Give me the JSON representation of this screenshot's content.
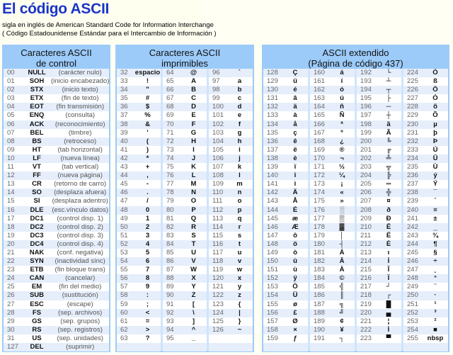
{
  "header": {
    "title": "El código ASCII",
    "subtitle1": "sigla en inglés de American Standard Code for Information Interchange",
    "subtitle2": "( Código Estadounidense Estándar para el Intercambio de Información )"
  },
  "control": {
    "title1": "Caracteres ASCII",
    "title2": "de control",
    "rows": [
      [
        "00",
        "NULL",
        "(carácter nulo)"
      ],
      [
        "01",
        "SOH",
        "(inicio encabezado)"
      ],
      [
        "02",
        "STX",
        "(inicio texto)"
      ],
      [
        "03",
        "ETX",
        "(fin de texto)"
      ],
      [
        "04",
        "EOT",
        "(fin transmisión)"
      ],
      [
        "05",
        "ENQ",
        "(consulta)"
      ],
      [
        "06",
        "ACK",
        "(reconocimiento)"
      ],
      [
        "07",
        "BEL",
        "(timbre)"
      ],
      [
        "08",
        "BS",
        "(retroceso)"
      ],
      [
        "09",
        "HT",
        "(tab horizontal)"
      ],
      [
        "10",
        "LF",
        "(nueva línea)"
      ],
      [
        "11",
        "VT",
        "(tab vertical)"
      ],
      [
        "12",
        "FF",
        "(nueva página)"
      ],
      [
        "13",
        "CR",
        "(retorno de carro)"
      ],
      [
        "14",
        "SO",
        "(desplaza afuera)"
      ],
      [
        "15",
        "SI",
        "(desplaza adentro)"
      ],
      [
        "16",
        "DLE",
        "(esc.vínculo datos)"
      ],
      [
        "17",
        "DC1",
        "(control disp. 1)"
      ],
      [
        "18",
        "DC2",
        "(control disp. 2)"
      ],
      [
        "19",
        "DC3",
        "(control disp. 3)"
      ],
      [
        "20",
        "DC4",
        "(control disp. 4)"
      ],
      [
        "21",
        "NAK",
        "(conf. negativa)"
      ],
      [
        "22",
        "SYN",
        "(inactividad sínc)"
      ],
      [
        "23",
        "ETB",
        "(fin bloque trans)"
      ],
      [
        "24",
        "CAN",
        "(cancelar)"
      ],
      [
        "25",
        "EM",
        "(fin del medio)"
      ],
      [
        "26",
        "SUB",
        "(sustitución)"
      ],
      [
        "27",
        "ESC",
        "(escape)"
      ],
      [
        "28",
        "FS",
        "(sep. archivos)"
      ],
      [
        "29",
        "GS",
        "(sep. grupos)"
      ],
      [
        "30",
        "RS",
        "(sep. registros)"
      ],
      [
        "31",
        "US",
        "(sep. unidades)"
      ],
      [
        "127",
        "DEL",
        "(suprimir)"
      ]
    ]
  },
  "printable": {
    "title1": "Caracteres ASCII",
    "title2": "imprimibles",
    "columns": [
      [
        [
          "32",
          "espacio"
        ],
        [
          "33",
          "!"
        ],
        [
          "34",
          "\""
        ],
        [
          "35",
          "#"
        ],
        [
          "36",
          "$"
        ],
        [
          "37",
          "%"
        ],
        [
          "38",
          "&"
        ],
        [
          "39",
          "'"
        ],
        [
          "40",
          "("
        ],
        [
          "41",
          ")"
        ],
        [
          "42",
          "*"
        ],
        [
          "43",
          "+"
        ],
        [
          "44",
          ","
        ],
        [
          "45",
          "-"
        ],
        [
          "46",
          "."
        ],
        [
          "47",
          "/"
        ],
        [
          "48",
          "0"
        ],
        [
          "49",
          "1"
        ],
        [
          "50",
          "2"
        ],
        [
          "51",
          "3"
        ],
        [
          "52",
          "4"
        ],
        [
          "53",
          "5"
        ],
        [
          "54",
          "6"
        ],
        [
          "55",
          "7"
        ],
        [
          "56",
          "8"
        ],
        [
          "57",
          "9"
        ],
        [
          "58",
          ":"
        ],
        [
          "59",
          ";"
        ],
        [
          "60",
          "<"
        ],
        [
          "61",
          "="
        ],
        [
          "62",
          ">"
        ],
        [
          "63",
          "?"
        ]
      ],
      [
        [
          "64",
          "@"
        ],
        [
          "65",
          "A"
        ],
        [
          "66",
          "B"
        ],
        [
          "67",
          "C"
        ],
        [
          "68",
          "D"
        ],
        [
          "69",
          "E"
        ],
        [
          "70",
          "F"
        ],
        [
          "71",
          "G"
        ],
        [
          "72",
          "H"
        ],
        [
          "73",
          "I"
        ],
        [
          "74",
          "J"
        ],
        [
          "75",
          "K"
        ],
        [
          "76",
          "L"
        ],
        [
          "77",
          "M"
        ],
        [
          "78",
          "N"
        ],
        [
          "79",
          "O"
        ],
        [
          "80",
          "P"
        ],
        [
          "81",
          "Q"
        ],
        [
          "82",
          "R"
        ],
        [
          "83",
          "S"
        ],
        [
          "84",
          "T"
        ],
        [
          "85",
          "U"
        ],
        [
          "86",
          "V"
        ],
        [
          "87",
          "W"
        ],
        [
          "88",
          "X"
        ],
        [
          "89",
          "Y"
        ],
        [
          "90",
          "Z"
        ],
        [
          "91",
          "["
        ],
        [
          "92",
          "\\"
        ],
        [
          "93",
          "]"
        ],
        [
          "94",
          "^"
        ],
        [
          "95",
          "_"
        ]
      ],
      [
        [
          "96",
          "`"
        ],
        [
          "97",
          "a"
        ],
        [
          "98",
          "b"
        ],
        [
          "99",
          "c"
        ],
        [
          "100",
          "d"
        ],
        [
          "101",
          "e"
        ],
        [
          "102",
          "f"
        ],
        [
          "103",
          "g"
        ],
        [
          "104",
          "h"
        ],
        [
          "105",
          "i"
        ],
        [
          "106",
          "j"
        ],
        [
          "107",
          "k"
        ],
        [
          "108",
          "l"
        ],
        [
          "109",
          "m"
        ],
        [
          "110",
          "n"
        ],
        [
          "111",
          "o"
        ],
        [
          "112",
          "p"
        ],
        [
          "113",
          "q"
        ],
        [
          "114",
          "r"
        ],
        [
          "115",
          "s"
        ],
        [
          "116",
          "t"
        ],
        [
          "117",
          "u"
        ],
        [
          "118",
          "v"
        ],
        [
          "119",
          "w"
        ],
        [
          "120",
          "x"
        ],
        [
          "121",
          "y"
        ],
        [
          "122",
          "z"
        ],
        [
          "123",
          "{"
        ],
        [
          "124",
          "|"
        ],
        [
          "125",
          "}"
        ],
        [
          "126",
          "~"
        ]
      ]
    ]
  },
  "extended": {
    "title1": "ASCII extendido",
    "title2": "(Página de código 437)",
    "columns": [
      [
        [
          "128",
          "Ç"
        ],
        [
          "129",
          "ü"
        ],
        [
          "130",
          "é"
        ],
        [
          "131",
          "â"
        ],
        [
          "132",
          "ä"
        ],
        [
          "133",
          "à"
        ],
        [
          "134",
          "å"
        ],
        [
          "135",
          "ç"
        ],
        [
          "136",
          "ê"
        ],
        [
          "137",
          "ë"
        ],
        [
          "138",
          "è"
        ],
        [
          "139",
          "ï"
        ],
        [
          "140",
          "î"
        ],
        [
          "141",
          "ì"
        ],
        [
          "142",
          "Ä"
        ],
        [
          "143",
          "Å"
        ],
        [
          "144",
          "É"
        ],
        [
          "145",
          "æ"
        ],
        [
          "146",
          "Æ"
        ],
        [
          "147",
          "ô"
        ],
        [
          "148",
          "ö"
        ],
        [
          "149",
          "ò"
        ],
        [
          "150",
          "û"
        ],
        [
          "151",
          "ù"
        ],
        [
          "152",
          "ÿ"
        ],
        [
          "153",
          "Ö"
        ],
        [
          "154",
          "Ü"
        ],
        [
          "155",
          "ø"
        ],
        [
          "156",
          "£"
        ],
        [
          "157",
          "Ø"
        ],
        [
          "158",
          "×"
        ],
        [
          "159",
          "ƒ"
        ]
      ],
      [
        [
          "160",
          "á"
        ],
        [
          "161",
          "í"
        ],
        [
          "162",
          "ó"
        ],
        [
          "163",
          "ú"
        ],
        [
          "164",
          "ñ"
        ],
        [
          "165",
          "Ñ"
        ],
        [
          "166",
          "ª"
        ],
        [
          "167",
          "º"
        ],
        [
          "168",
          "¿"
        ],
        [
          "169",
          "®"
        ],
        [
          "170",
          "¬"
        ],
        [
          "171",
          "½"
        ],
        [
          "172",
          "¼"
        ],
        [
          "173",
          "¡"
        ],
        [
          "174",
          "«"
        ],
        [
          "175",
          "»"
        ],
        [
          "176",
          "░"
        ],
        [
          "177",
          "▒"
        ],
        [
          "178",
          "▓"
        ],
        [
          "179",
          "│"
        ],
        [
          "180",
          "┤"
        ],
        [
          "181",
          "Á"
        ],
        [
          "182",
          "Â"
        ],
        [
          "183",
          "À"
        ],
        [
          "184",
          "©"
        ],
        [
          "185",
          "╣"
        ],
        [
          "186",
          "║"
        ],
        [
          "187",
          "╗"
        ],
        [
          "188",
          "╝"
        ],
        [
          "189",
          "¢"
        ],
        [
          "190",
          "¥"
        ],
        [
          "191",
          "┐"
        ]
      ],
      [
        [
          "192",
          "└"
        ],
        [
          "193",
          "┴"
        ],
        [
          "194",
          "┬"
        ],
        [
          "195",
          "├"
        ],
        [
          "196",
          "─"
        ],
        [
          "197",
          "┼"
        ],
        [
          "198",
          "ã"
        ],
        [
          "199",
          "Ã"
        ],
        [
          "200",
          "╚"
        ],
        [
          "201",
          "╔"
        ],
        [
          "202",
          "╩"
        ],
        [
          "203",
          "╦"
        ],
        [
          "204",
          "╠"
        ],
        [
          "205",
          "═"
        ],
        [
          "206",
          "╬"
        ],
        [
          "207",
          "¤"
        ],
        [
          "208",
          "ð"
        ],
        [
          "209",
          "Ð"
        ],
        [
          "210",
          "Ê"
        ],
        [
          "211",
          "Ë"
        ],
        [
          "212",
          "È"
        ],
        [
          "213",
          "ı"
        ],
        [
          "214",
          "Í"
        ],
        [
          "215",
          "Î"
        ],
        [
          "216",
          "Ï"
        ],
        [
          "217",
          "┘"
        ],
        [
          "218",
          "┌"
        ],
        [
          "219",
          "█"
        ],
        [
          "220",
          "▄"
        ],
        [
          "221",
          "¦"
        ],
        [
          "222",
          "Ì"
        ],
        [
          "223",
          "▀"
        ]
      ],
      [
        [
          "224",
          "Ó"
        ],
        [
          "225",
          "ß"
        ],
        [
          "226",
          "Ô"
        ],
        [
          "227",
          "Ò"
        ],
        [
          "228",
          "õ"
        ],
        [
          "229",
          "Õ"
        ],
        [
          "230",
          "µ"
        ],
        [
          "231",
          "þ"
        ],
        [
          "232",
          "Þ"
        ],
        [
          "233",
          "Ú"
        ],
        [
          "234",
          "Û"
        ],
        [
          "235",
          "Ù"
        ],
        [
          "236",
          "ý"
        ],
        [
          "237",
          "Ý"
        ],
        [
          "238",
          "¯"
        ],
        [
          "239",
          "´"
        ],
        [
          "240",
          "≡"
        ],
        [
          "241",
          "±"
        ],
        [
          "242",
          "‗"
        ],
        [
          "243",
          "¾"
        ],
        [
          "244",
          "¶"
        ],
        [
          "245",
          "§"
        ],
        [
          "246",
          "÷"
        ],
        [
          "247",
          "¸"
        ],
        [
          "248",
          "°"
        ],
        [
          "249",
          "¨"
        ],
        [
          "250",
          "·"
        ],
        [
          "251",
          "¹"
        ],
        [
          "252",
          "³"
        ],
        [
          "253",
          "²"
        ],
        [
          "254",
          "■"
        ],
        [
          "255",
          "nbsp"
        ]
      ]
    ]
  }
}
